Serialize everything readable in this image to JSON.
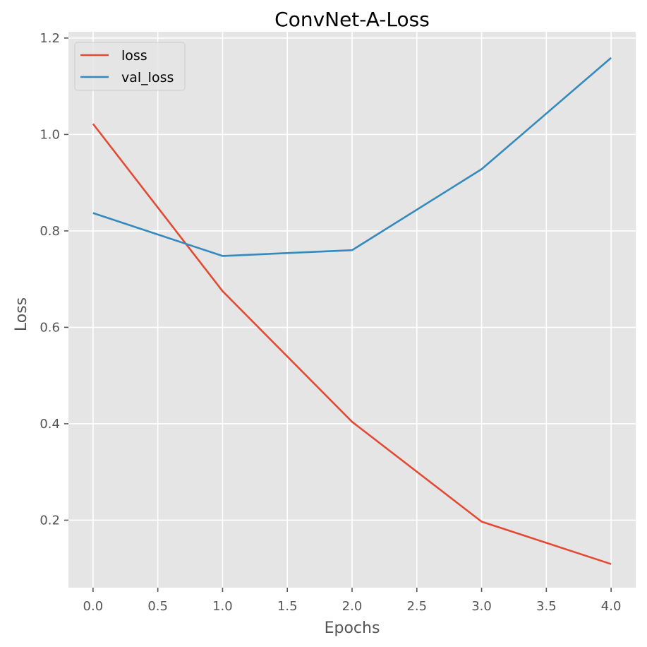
{
  "chart_data": {
    "type": "line",
    "title": "ConvNet-A-Loss",
    "xlabel": "Epochs",
    "ylabel": "Loss",
    "x": [
      0,
      1,
      2,
      3,
      4
    ],
    "xlim": [
      -0.19,
      4.19
    ],
    "ylim": [
      0.06,
      1.213
    ],
    "xticks": [
      0.0,
      0.5,
      1.0,
      1.5,
      2.0,
      2.5,
      3.0,
      3.5,
      4.0
    ],
    "xtick_labels": [
      "0.0",
      "0.5",
      "1.0",
      "1.5",
      "2.0",
      "2.5",
      "3.0",
      "3.5",
      "4.0"
    ],
    "yticks": [
      0.2,
      0.4,
      0.6,
      0.8,
      1.0,
      1.2
    ],
    "ytick_labels": [
      "0.2",
      "0.4",
      "0.6",
      "0.8",
      "1.0",
      "1.2"
    ],
    "series": [
      {
        "name": "loss",
        "color": "#E24A33",
        "values": [
          1.022,
          0.675,
          0.404,
          0.197,
          0.109
        ]
      },
      {
        "name": "val_loss",
        "color": "#348ABD",
        "values": [
          0.837,
          0.748,
          0.76,
          0.928,
          1.159
        ]
      }
    ],
    "grid": true,
    "legend_position": "top-left",
    "style": {
      "background": "#E5E5E5",
      "grid_color": "#FFFFFF"
    }
  }
}
